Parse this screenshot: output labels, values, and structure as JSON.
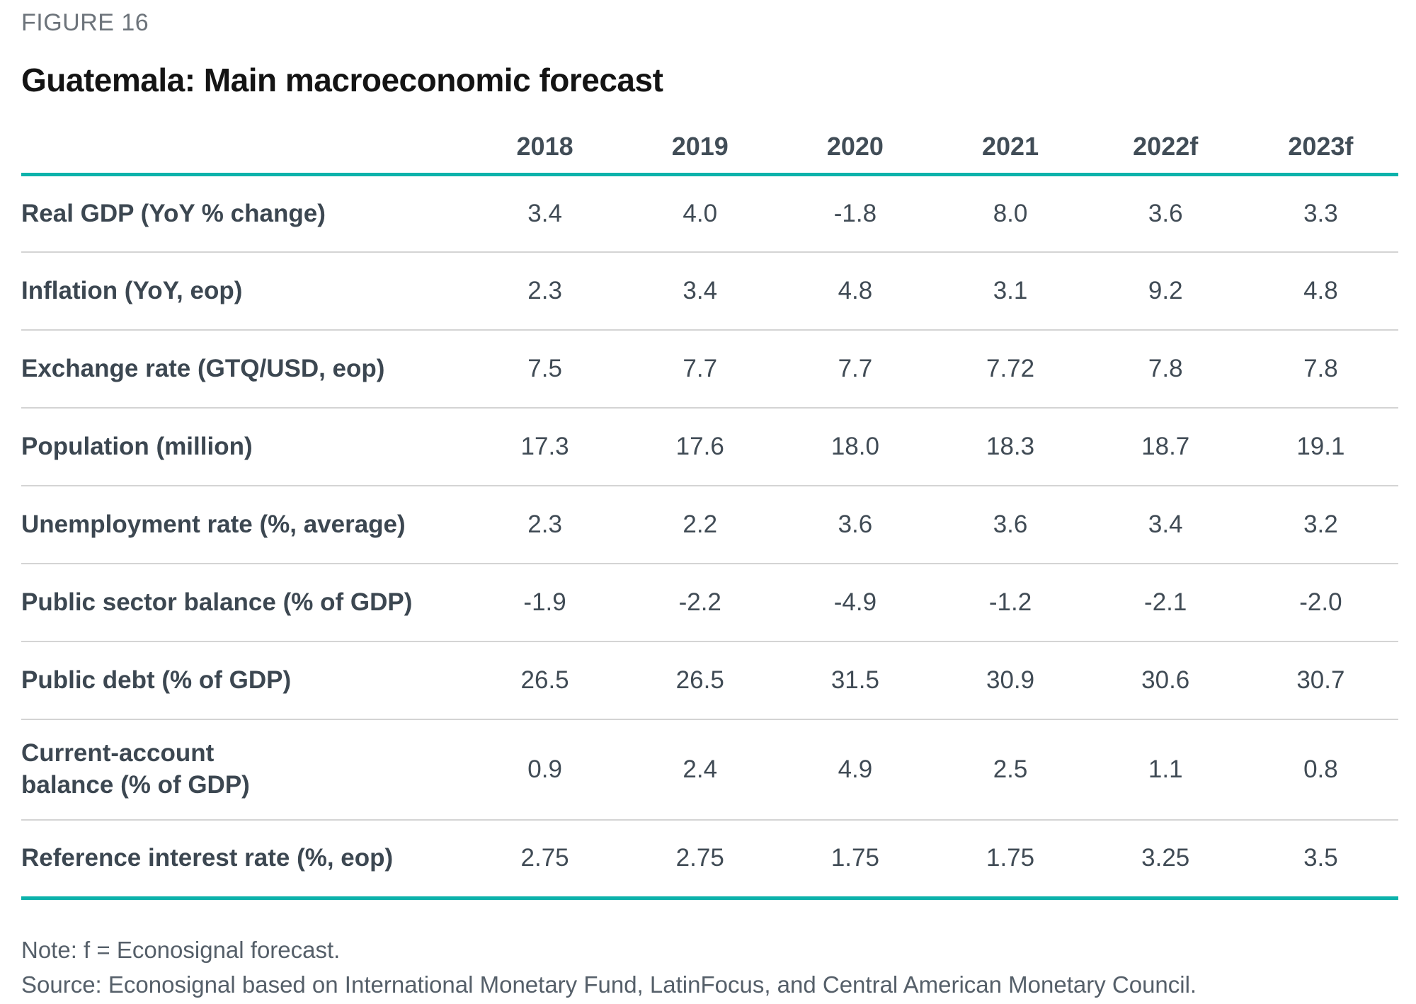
{
  "figure": {
    "label": "FIGURE 16",
    "title": "Guatemala: Main macroeconomic forecast"
  },
  "table": {
    "columns": [
      "2018",
      "2019",
      "2020",
      "2021",
      "2022f",
      "2023f"
    ],
    "rows": [
      {
        "label": "Real GDP (YoY % change)",
        "values": [
          "3.4",
          "4.0",
          "-1.8",
          "8.0",
          "3.6",
          "3.3"
        ]
      },
      {
        "label": "Inflation (YoY, eop)",
        "values": [
          "2.3",
          "3.4",
          "4.8",
          "3.1",
          "9.2",
          "4.8"
        ]
      },
      {
        "label": "Exchange rate (GTQ/USD, eop)",
        "values": [
          "7.5",
          "7.7",
          "7.7",
          "7.72",
          "7.8",
          "7.8"
        ]
      },
      {
        "label": "Population (million)",
        "values": [
          "17.3",
          "17.6",
          "18.0",
          "18.3",
          "18.7",
          "19.1"
        ]
      },
      {
        "label": "Unemployment rate (%, average)",
        "values": [
          "2.3",
          "2.2",
          "3.6",
          "3.6",
          "3.4",
          "3.2"
        ]
      },
      {
        "label": "Public sector balance (% of GDP)",
        "values": [
          "-1.9",
          "-2.2",
          "-4.9",
          "-1.2",
          "-2.1",
          "-2.0"
        ]
      },
      {
        "label": "Public debt (% of GDP)",
        "values": [
          "26.5",
          "26.5",
          "31.5",
          "30.9",
          "30.6",
          "30.7"
        ]
      },
      {
        "label": "Current-account\nbalance (% of GDP)",
        "values": [
          "0.9",
          "2.4",
          "4.9",
          "2.5",
          "1.1",
          "0.8"
        ]
      },
      {
        "label": "Reference interest rate (%, eop)",
        "values": [
          "2.75",
          "2.75",
          "1.75",
          "1.75",
          "3.25",
          "3.5"
        ]
      }
    ]
  },
  "footer": {
    "note": "Note: f = Econosignal forecast.",
    "source": "Source: Econosignal based on International Monetary Fund, LatinFocus, and Central American Monetary Council."
  },
  "colors": {
    "accent_teal": "#0cb2ab",
    "text_dark": "#3f4a54",
    "title_black": "#141414",
    "label_gray": "#6d747b",
    "divider_gray": "#d4d4d4"
  },
  "chart_data": {
    "type": "table",
    "title": "Guatemala: Main macroeconomic forecast",
    "figure_number": "FIGURE 16",
    "columns": [
      "2018",
      "2019",
      "2020",
      "2021",
      "2022f",
      "2023f"
    ],
    "rows": [
      {
        "indicator": "Real GDP (YoY % change)",
        "values": [
          3.4,
          4.0,
          -1.8,
          8.0,
          3.6,
          3.3
        ]
      },
      {
        "indicator": "Inflation (YoY, eop)",
        "values": [
          2.3,
          3.4,
          4.8,
          3.1,
          9.2,
          4.8
        ]
      },
      {
        "indicator": "Exchange rate (GTQ/USD, eop)",
        "values": [
          7.5,
          7.7,
          7.7,
          7.72,
          7.8,
          7.8
        ]
      },
      {
        "indicator": "Population (million)",
        "values": [
          17.3,
          17.6,
          18.0,
          18.3,
          18.7,
          19.1
        ]
      },
      {
        "indicator": "Unemployment rate (%, average)",
        "values": [
          2.3,
          2.2,
          3.6,
          3.6,
          3.4,
          3.2
        ]
      },
      {
        "indicator": "Public sector balance (% of GDP)",
        "values": [
          -1.9,
          -2.2,
          -4.9,
          -1.2,
          -2.1,
          -2.0
        ]
      },
      {
        "indicator": "Public debt (% of GDP)",
        "values": [
          26.5,
          26.5,
          31.5,
          30.9,
          30.6,
          30.7
        ]
      },
      {
        "indicator": "Current-account balance (% of GDP)",
        "values": [
          0.9,
          2.4,
          4.9,
          2.5,
          1.1,
          0.8
        ]
      },
      {
        "indicator": "Reference interest rate (%, eop)",
        "values": [
          2.75,
          2.75,
          1.75,
          1.75,
          3.25,
          3.5
        ]
      }
    ],
    "note": "f = Econosignal forecast",
    "source": "Econosignal based on International Monetary Fund, LatinFocus, and Central American Monetary Council"
  }
}
